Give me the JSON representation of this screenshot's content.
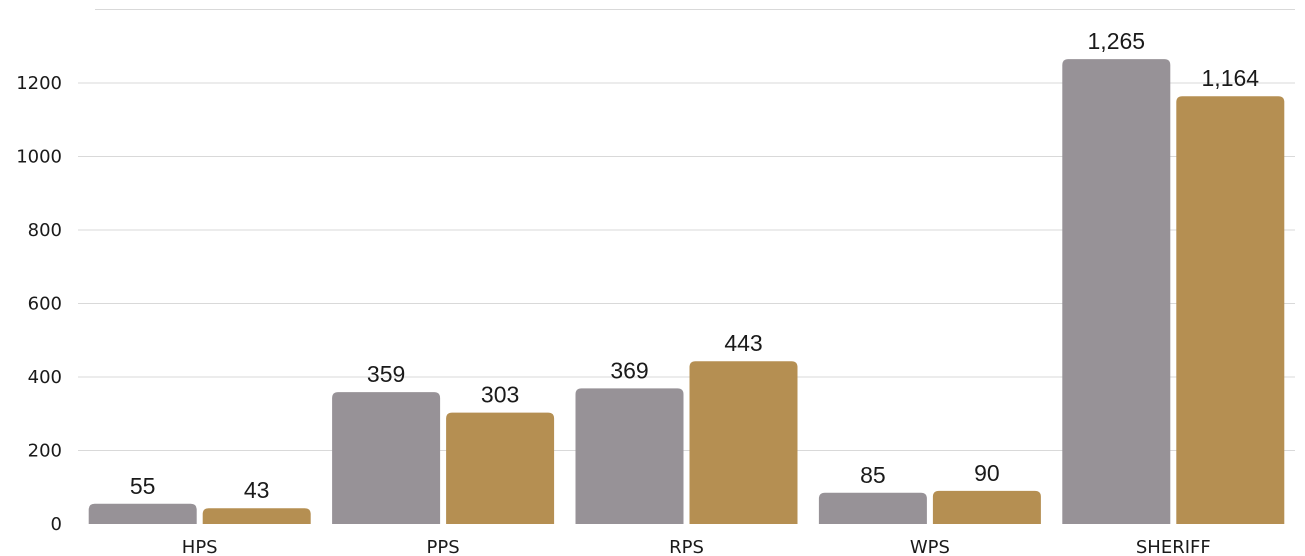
{
  "chart_data": {
    "type": "bar",
    "categories": [
      "HPS",
      "PPS",
      "RPS",
      "WPS",
      "SHERIFF"
    ],
    "series": [
      {
        "values": [
          55,
          359,
          369,
          85,
          1265
        ],
        "color": "#979297",
        "labels": [
          "55",
          "359",
          "369",
          "85",
          "1,265"
        ]
      },
      {
        "values": [
          43,
          303,
          443,
          90,
          1164
        ],
        "color": "#b58f52",
        "labels": [
          "43",
          "303",
          "443",
          "90",
          "1,164"
        ]
      }
    ],
    "yticks": [
      0,
      200,
      400,
      600,
      800,
      1000,
      1200
    ],
    "ylim": [
      0,
      1400
    ],
    "grid": true,
    "title": "",
    "xlabel": "",
    "ylabel": ""
  }
}
